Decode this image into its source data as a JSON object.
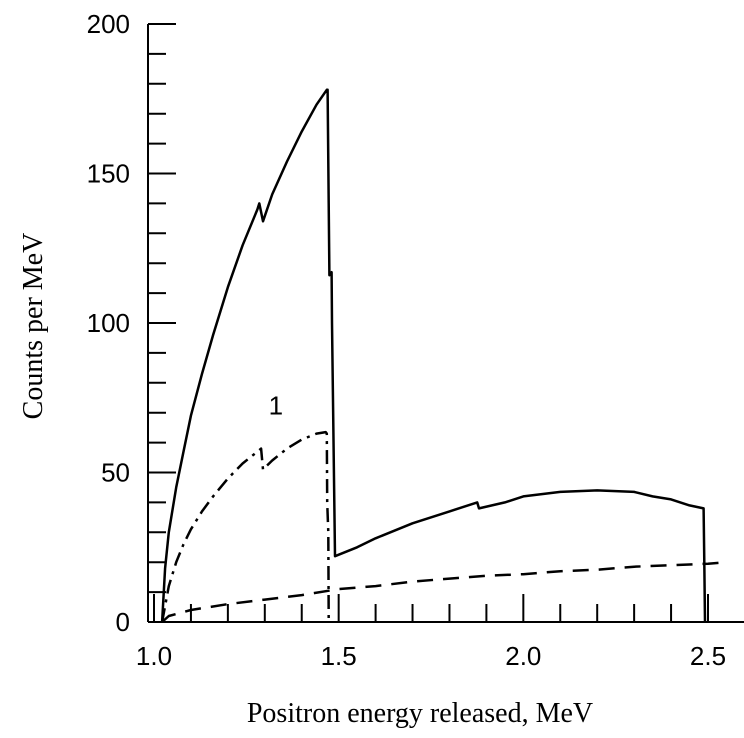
{
  "chart_data": {
    "type": "line",
    "title": "",
    "xlabel": "Positron energy released, MeV",
    "ylabel": "Counts per MeV",
    "xlim": [
      1.0,
      2.55
    ],
    "ylim": [
      0,
      200
    ],
    "grid": false,
    "legend": "none",
    "x_ticks": [
      1.0,
      1.5,
      2.0,
      2.5
    ],
    "x_tick_labels": [
      "1.0",
      "1.5",
      "2.0",
      "2.5"
    ],
    "y_ticks": [
      0,
      50,
      100,
      150,
      200
    ],
    "y_tick_labels": [
      "0",
      "50",
      "100",
      "150",
      "200"
    ],
    "annotations": [
      {
        "text": "1",
        "x": 1.33,
        "y": 72
      }
    ],
    "series": [
      {
        "style": "solid",
        "points": [
          [
            1.022,
            0
          ],
          [
            1.03,
            18
          ],
          [
            1.04,
            30
          ],
          [
            1.06,
            45
          ],
          [
            1.08,
            57
          ],
          [
            1.1,
            69
          ],
          [
            1.13,
            83
          ],
          [
            1.16,
            96
          ],
          [
            1.2,
            112
          ],
          [
            1.24,
            126
          ],
          [
            1.28,
            138
          ],
          [
            1.285,
            140
          ],
          [
            1.295,
            134
          ],
          [
            1.32,
            143
          ],
          [
            1.36,
            154
          ],
          [
            1.4,
            164
          ],
          [
            1.44,
            173
          ],
          [
            1.468,
            178
          ],
          [
            1.47,
            178
          ],
          [
            1.473,
            140
          ],
          [
            1.475,
            116
          ],
          [
            1.481,
            117
          ],
          [
            1.482,
            100
          ],
          [
            1.49,
            22
          ],
          [
            1.55,
            25
          ],
          [
            1.6,
            28
          ],
          [
            1.7,
            33
          ],
          [
            1.8,
            37
          ],
          [
            1.875,
            40
          ],
          [
            1.88,
            38
          ],
          [
            1.95,
            40
          ],
          [
            2.0,
            42
          ],
          [
            2.1,
            43.5
          ],
          [
            2.2,
            44
          ],
          [
            2.3,
            43.5
          ],
          [
            2.35,
            42
          ],
          [
            2.4,
            41
          ],
          [
            2.45,
            39
          ],
          [
            2.488,
            38
          ],
          [
            2.49,
            20
          ],
          [
            2.492,
            0
          ]
        ]
      },
      {
        "style": "dash-dot",
        "points": [
          [
            1.022,
            0
          ],
          [
            1.04,
            12
          ],
          [
            1.06,
            20
          ],
          [
            1.08,
            26
          ],
          [
            1.1,
            31
          ],
          [
            1.13,
            37
          ],
          [
            1.16,
            42
          ],
          [
            1.2,
            48
          ],
          [
            1.24,
            53
          ],
          [
            1.28,
            57
          ],
          [
            1.29,
            58
          ],
          [
            1.295,
            51
          ],
          [
            1.32,
            54
          ],
          [
            1.36,
            58
          ],
          [
            1.4,
            61
          ],
          [
            1.44,
            63
          ],
          [
            1.465,
            63.5
          ],
          [
            1.468,
            63
          ],
          [
            1.469,
            40
          ],
          [
            1.472,
            30
          ],
          [
            1.473,
            0
          ]
        ]
      },
      {
        "style": "dashed",
        "points": [
          [
            1.022,
            0
          ],
          [
            1.04,
            2
          ],
          [
            1.1,
            4
          ],
          [
            1.2,
            6
          ],
          [
            1.3,
            7.5
          ],
          [
            1.4,
            9
          ],
          [
            1.5,
            11
          ],
          [
            1.6,
            12
          ],
          [
            1.7,
            13.5
          ],
          [
            1.8,
            14.5
          ],
          [
            1.9,
            15.5
          ],
          [
            2.0,
            16
          ],
          [
            2.1,
            17
          ],
          [
            2.2,
            17.5
          ],
          [
            2.3,
            18.5
          ],
          [
            2.4,
            19
          ],
          [
            2.5,
            19.5
          ],
          [
            2.55,
            20
          ]
        ]
      }
    ]
  }
}
